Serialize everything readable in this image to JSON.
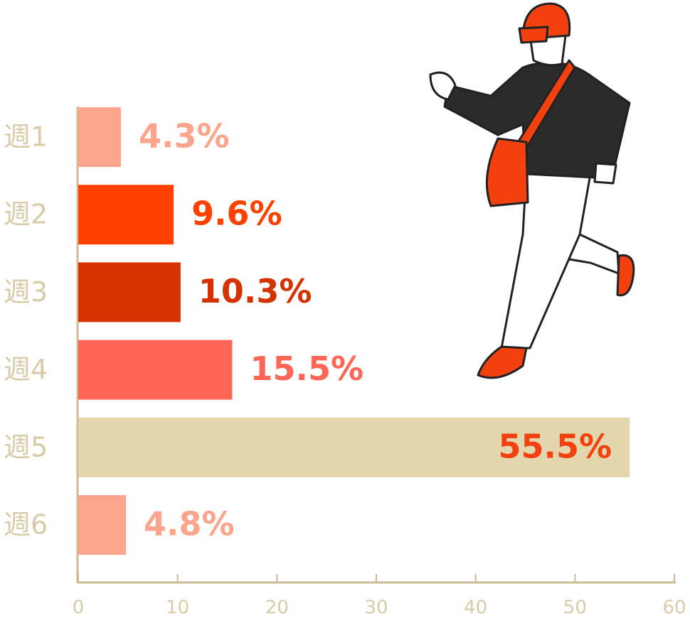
{
  "chart_data": {
    "type": "bar",
    "orientation": "horizontal",
    "categories": [
      "週1",
      "週2",
      "週3",
      "週4",
      "週5",
      "週6"
    ],
    "values": [
      4.3,
      9.6,
      10.3,
      15.5,
      55.5,
      4.8
    ],
    "value_labels": [
      "4.3%",
      "9.6%",
      "10.3%",
      "15.5%",
      "55.5%",
      "4.8%"
    ],
    "colors": [
      "#fca48c",
      "#fe4100",
      "#d43300",
      "#ff6656",
      "#e3d5ac",
      "#fca48c"
    ],
    "label_colors": [
      "#fca48c",
      "#fe4100",
      "#d43300",
      "#ff6656",
      "#f2400f",
      "#fca48c"
    ],
    "xlim": [
      0,
      60
    ],
    "xticks": [
      0,
      10,
      20,
      30,
      40,
      50,
      60
    ]
  }
}
